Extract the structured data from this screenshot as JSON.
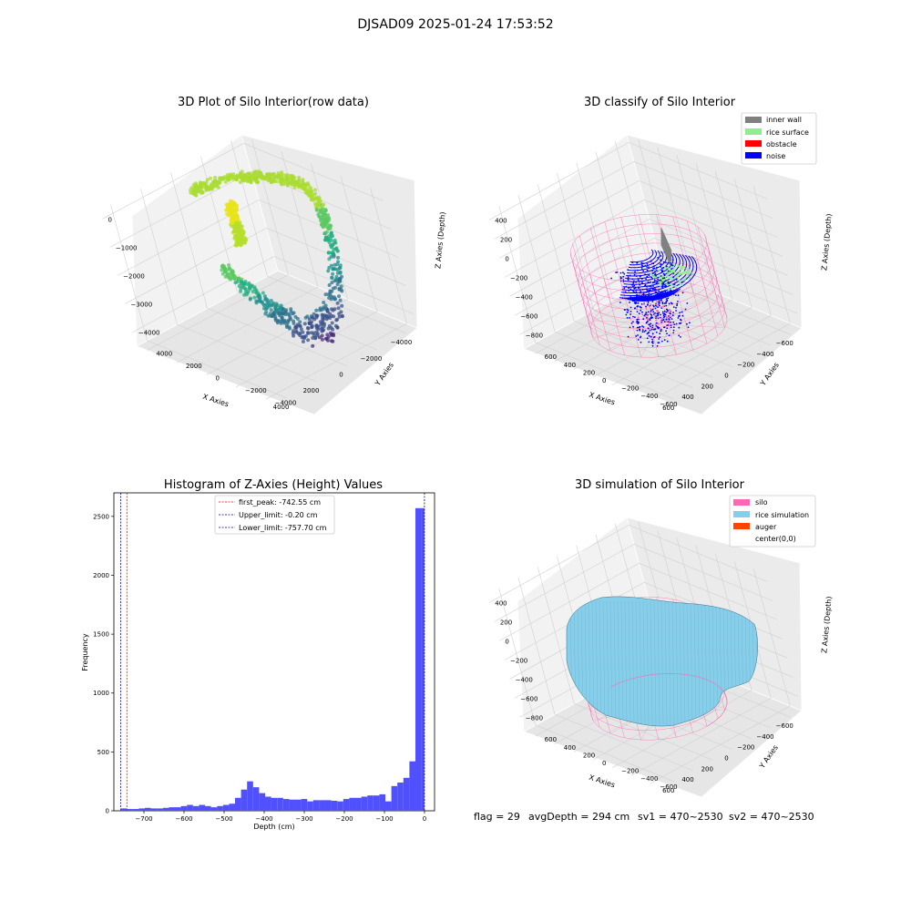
{
  "figure": {
    "suptitle": "DJSAD09 2025-01-24 17:53:52",
    "footer": {
      "flag": "flag = 29",
      "avg_depth": "avgDepth = 294 cm",
      "sv1": "sv1 = 470~2530",
      "sv2": "sv2 = 470~2530"
    }
  },
  "colors": {
    "inner_wall": "#808080",
    "rice_surface": "#90ee90",
    "obstacle": "#ff0000",
    "noise": "#0000ff",
    "silo": "#ff69b4",
    "rice_simulation": "#87ceeb",
    "auger": "#ff4500",
    "hist_bar": "#5050ff",
    "first_peak_line": "#ff0000",
    "limit_line": "#0000aa"
  },
  "chart_data": [
    {
      "type": "scatter",
      "projection": "3d",
      "title": "3D Plot of Silo Interior(row data)",
      "xlabel": "X Axies",
      "ylabel": "Y Axies",
      "zlabel": "Z Axies (Depth)",
      "xticks": [
        "−4000",
        "−2000",
        "0",
        "2000",
        "4000"
      ],
      "yticks": [
        "−4000",
        "−2000",
        "0",
        "2000",
        "4000"
      ],
      "zticks": [
        "−4000",
        "−3000",
        "−2000",
        "−1000",
        "0"
      ],
      "xlim": [
        -4700,
        4700
      ],
      "ylim": [
        -4700,
        4700
      ],
      "zlim": [
        -4500,
        300
      ],
      "colormap": "viridis",
      "points_description": "U-shaped ring of points around the inner silo wall, deepest near y = -4000, with a dense cluster near z = -1000"
    },
    {
      "type": "scatter",
      "projection": "3d",
      "title": "3D classify of Silo Interior",
      "xlabel": "X Axies",
      "ylabel": "Y Axies",
      "zlabel": "Z Axies (Depth)",
      "xticks": [
        "−600",
        "−400",
        "−200",
        "0",
        "200",
        "400",
        "600"
      ],
      "yticks": [
        "−600",
        "−400",
        "−200",
        "0",
        "200",
        "400",
        "600"
      ],
      "zticks": [
        "−800",
        "−600",
        "−400",
        "−200",
        "0",
        "200",
        "400"
      ],
      "xlim": [
        -720,
        720
      ],
      "ylim": [
        -720,
        720
      ],
      "zlim": [
        -950,
        480
      ],
      "legend": {
        "position": "upper right",
        "entries": [
          {
            "label": "inner wall",
            "color": "#808080"
          },
          {
            "label": "rice surface",
            "color": "#90ee90"
          },
          {
            "label": "obstacle",
            "color": "#ff0000"
          },
          {
            "label": "noise",
            "color": "#0000ff"
          }
        ]
      },
      "silo_wireframe": {
        "radius": 500,
        "z_top": 0,
        "z_bottom": -800,
        "color": "#ff69b4"
      }
    },
    {
      "type": "bar",
      "title": "Histogram of Z-Axies (Height) Values",
      "xlabel": "Depth (cm)",
      "ylabel": "Frequency",
      "xticks": [
        -700,
        -600,
        -500,
        -400,
        -300,
        -200,
        -100,
        0
      ],
      "yticks": [
        0,
        500,
        1000,
        1500,
        2000,
        2500
      ],
      "xlim": [
        -775,
        25
      ],
      "ylim": [
        0,
        2700
      ],
      "bin_width": 15,
      "bins_start": [
        -757.7,
        -742.7,
        -727.7,
        -712.7,
        -697.7,
        -682.7,
        -667.7,
        -652.7,
        -637.7,
        -622.7,
        -607.7,
        -592.7,
        -577.7,
        -562.7,
        -547.7,
        -532.7,
        -517.7,
        -502.7,
        -487.7,
        -472.7,
        -457.7,
        -442.7,
        -427.7,
        -412.7,
        -397.7,
        -382.7,
        -367.7,
        -352.7,
        -337.7,
        -322.7,
        -307.7,
        -292.7,
        -277.7,
        -262.7,
        -247.7,
        -232.7,
        -217.7,
        -202.7,
        -187.7,
        -172.7,
        -157.7,
        -142.7,
        -127.7,
        -112.7,
        -97.7,
        -82.7,
        -67.7,
        -52.7,
        -37.7,
        -22.7,
        -7.7
      ],
      "values": [
        20,
        15,
        15,
        20,
        25,
        20,
        20,
        25,
        30,
        30,
        40,
        50,
        40,
        50,
        40,
        30,
        40,
        50,
        60,
        110,
        180,
        250,
        200,
        150,
        120,
        110,
        110,
        100,
        95,
        95,
        100,
        80,
        90,
        90,
        90,
        85,
        80,
        100,
        110,
        110,
        120,
        130,
        130,
        140,
        80,
        210,
        240,
        280,
        420,
        2570,
        2570
      ],
      "reference_lines": [
        {
          "label": "first_peak: -742.55 cm",
          "x": -742.55,
          "color": "#ff0000",
          "style": "dashed"
        },
        {
          "label": "Upper_limit: -0.20 cm",
          "x": -0.2,
          "color": "#0000aa",
          "style": "dashed"
        },
        {
          "label": "Lower_limit: -757.70 cm",
          "x": -757.7,
          "color": "#0000aa",
          "style": "dashed"
        }
      ],
      "legend": {
        "position": "upper center"
      }
    },
    {
      "type": "surface",
      "projection": "3d",
      "title": "3D simulation of Silo Interior",
      "xlabel": "X Axies",
      "ylabel": "Y Axies",
      "zlabel": "Z Axies (Depth)",
      "xticks": [
        "−600",
        "−400",
        "−200",
        "0",
        "200",
        "400",
        "600"
      ],
      "yticks": [
        "−600",
        "−400",
        "−200",
        "0",
        "200",
        "400",
        "600"
      ],
      "zticks": [
        "−800",
        "−600",
        "−400",
        "−200",
        "0",
        "200",
        "400"
      ],
      "xlim": [
        -720,
        720
      ],
      "ylim": [
        -720,
        720
      ],
      "zlim": [
        -950,
        480
      ],
      "legend": {
        "position": "upper right",
        "entries": [
          {
            "label": "silo",
            "color": "#ff69b4"
          },
          {
            "label": "rice simulation",
            "color": "#87ceeb"
          },
          {
            "label": "auger",
            "color": "#ff4500"
          },
          {
            "label": "center(0,0)",
            "color": "#ffffff"
          }
        ]
      },
      "silo_wireframe": {
        "radius": 500,
        "z_top": 0,
        "z_bottom": -800,
        "color": "#ff69b4"
      }
    }
  ]
}
